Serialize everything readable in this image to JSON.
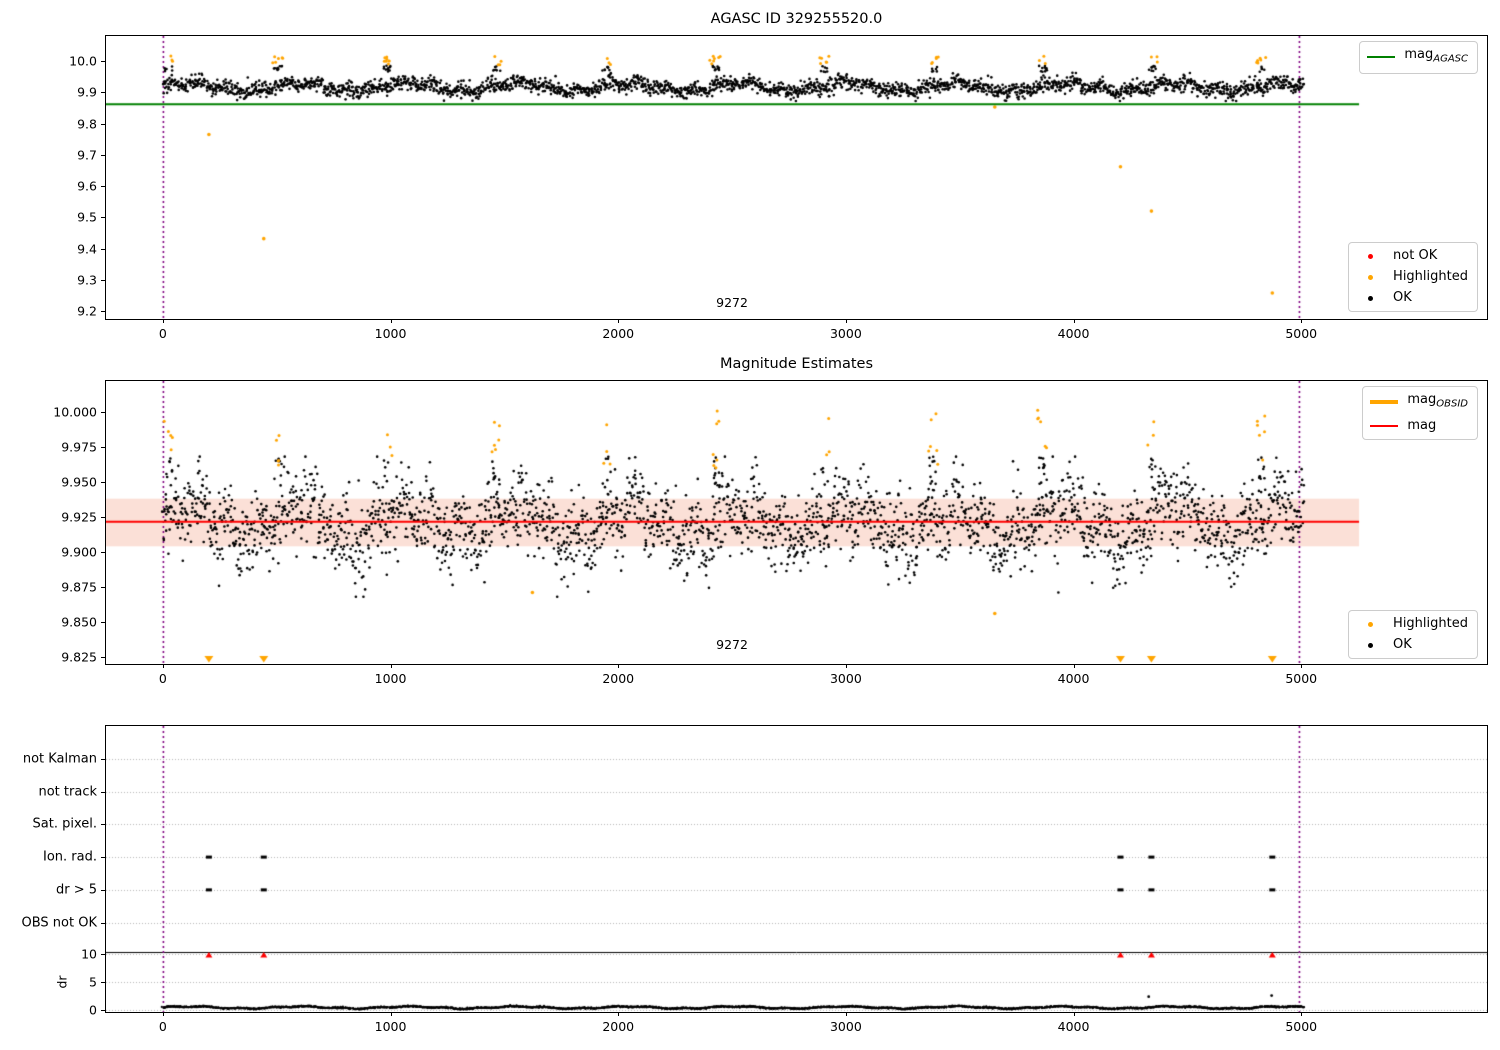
{
  "colors": {
    "ok": "#000000",
    "highlighted": "#FFA500",
    "not_ok": "#FF0000",
    "mag_agasc_line": "#008000",
    "mag_line": "#FF0000",
    "mag_band": "#fbe0d7",
    "obs_boundary": "#800080",
    "grid": "#b5b5b5",
    "separator": "#000000"
  },
  "chart_data": [
    {
      "type": "scatter",
      "title": "AGASC ID 329255520.0",
      "xlim": [
        -250,
        5816
      ],
      "ylim": [
        9.175,
        10.08
      ],
      "xticks": [
        0,
        1000,
        2000,
        3000,
        4000,
        5000
      ],
      "xtick_labels": [
        "0",
        "1000",
        "2000",
        "3000",
        "4000",
        "5000"
      ],
      "yticks": [
        10.0,
        9.9,
        9.8,
        9.7,
        9.6,
        9.5,
        9.4,
        9.3,
        9.2
      ],
      "ytick_labels": [
        "10.0",
        "9.9",
        "9.8",
        "9.7",
        "9.6",
        "9.5",
        "9.4",
        "9.3",
        "9.2"
      ],
      "grid": false,
      "hlines": [
        {
          "name": "mag_AGASC",
          "y": 9.862,
          "x0": -250,
          "x1": 5254,
          "color": "#008000",
          "width": 2
        }
      ],
      "vlines": [
        {
          "x": 0,
          "color": "#800080",
          "style": "dotted"
        },
        {
          "x": 4990,
          "color": "#800080",
          "style": "dotted"
        }
      ],
      "series_summary": {
        "name": "OK",
        "color": "#000000",
        "n": 2600,
        "x_range": [
          0,
          5010
        ],
        "center": 9.917,
        "wave_period": 480,
        "wave_amp": 0.013,
        "wave2_period": 128,
        "wave2_amp": 0.007,
        "noise": 0.012,
        "y_min": 9.872,
        "y_max": 9.985
      },
      "highlight_clusters": {
        "name": "Highlighted",
        "color": "#FFA500",
        "start": 25,
        "period": 480,
        "count": 11,
        "y_range": [
          9.988,
          10.016
        ]
      },
      "highlight_outliers": {
        "color": "#FFA500",
        "points": [
          [
            202,
            9.765
          ],
          [
            443,
            9.432
          ],
          [
            3654,
            9.853
          ],
          [
            4206,
            9.662
          ],
          [
            4342,
            9.52
          ],
          [
            4873,
            9.258
          ]
        ]
      },
      "annotations": [
        {
          "x": 2500,
          "y": 9.205,
          "text": "9272"
        }
      ],
      "legends": [
        {
          "position": "top-right",
          "entries": [
            {
              "swatch": "line",
              "color": "#008000",
              "label": "mag",
              "sub": "AGASC"
            }
          ]
        },
        {
          "position": "bottom-right",
          "entries": [
            {
              "swatch": "dot",
              "color": "#FF0000",
              "label": "not OK"
            },
            {
              "swatch": "dot",
              "color": "#FFA500",
              "label": "Highlighted"
            },
            {
              "swatch": "dot",
              "color": "#000000",
              "label": "OK"
            }
          ]
        }
      ]
    },
    {
      "type": "scatter",
      "title": "Magnitude Estimates",
      "xlim": [
        -250,
        5816
      ],
      "ylim": [
        9.82,
        10.022
      ],
      "xticks": [
        0,
        1000,
        2000,
        3000,
        4000,
        5000
      ],
      "xtick_labels": [
        "0",
        "1000",
        "2000",
        "3000",
        "4000",
        "5000"
      ],
      "yticks": [
        10.0,
        9.975,
        9.95,
        9.925,
        9.9,
        9.875,
        9.85,
        9.825
      ],
      "ytick_labels": [
        "10.000",
        "9.975",
        "9.950",
        "9.925",
        "9.900",
        "9.875",
        "9.850",
        "9.825"
      ],
      "grid": false,
      "band": {
        "y_top": 9.938,
        "y_bottom": 9.904,
        "x0": -250,
        "x1": 5254,
        "color": "#fbe0d7"
      },
      "hlines": [
        {
          "name": "mag",
          "y": 9.9215,
          "x0": -250,
          "x1": 5254,
          "color": "#FF0000",
          "width": 2
        }
      ],
      "vlines": [
        {
          "x": 0,
          "color": "#800080",
          "style": "dotted"
        },
        {
          "x": 4990,
          "color": "#800080",
          "style": "dotted"
        }
      ],
      "series_summary": {
        "name": "OK",
        "color": "#000000",
        "n": 2600,
        "x_range": [
          0,
          5010
        ],
        "center": 9.921,
        "wave_period": 480,
        "wave_amp": 0.012,
        "wave2_period": 128,
        "wave2_amp": 0.008,
        "noise": 0.014,
        "y_min": 9.868,
        "y_max": 9.968
      },
      "highlight_clusters": {
        "name": "Highlighted",
        "color": "#FFA500",
        "start": 25,
        "period": 480,
        "count": 11,
        "y_range": [
          9.956,
          10.002
        ]
      },
      "highlight_outliers": {
        "color": "#FFA500",
        "points": [
          [
            1623,
            9.871
          ],
          [
            3654,
            9.856
          ]
        ]
      },
      "below_range_triangles": {
        "x": [
          202,
          443,
          4206,
          4342,
          4873
        ],
        "y": 9.8235,
        "color": "#FFA500"
      },
      "annotations": [
        {
          "x": 2500,
          "y": 9.8285,
          "text": "9272"
        }
      ],
      "legends": [
        {
          "position": "top-right",
          "entries": [
            {
              "swatch": "thickline",
              "color": "#FFA500",
              "label": "mag",
              "sub": "OBSID"
            },
            {
              "swatch": "line",
              "color": "#FF0000",
              "label": "mag",
              "sub": ""
            }
          ]
        },
        {
          "position": "bottom-right",
          "entries": [
            {
              "swatch": "dot",
              "color": "#FFA500",
              "label": "Highlighted"
            },
            {
              "swatch": "dot",
              "color": "#000000",
              "label": "OK"
            }
          ]
        }
      ]
    },
    {
      "type": "flags-and-dr",
      "title": "",
      "xlim": [
        -250,
        5816
      ],
      "xticks": [
        0,
        1000,
        2000,
        3000,
        4000,
        5000
      ],
      "xtick_labels": [
        "0",
        "1000",
        "2000",
        "3000",
        "4000",
        "5000"
      ],
      "rows": [
        "not Kalman",
        "not track",
        "Sat. pixel.",
        "Ion. rad.",
        "dr > 5",
        "OBS not OK"
      ],
      "dr_ticks": [
        10,
        5,
        0
      ],
      "dr_tick_labels": [
        "10",
        "5",
        "0"
      ],
      "dr_axis_label": "dr",
      "grid": "dotted",
      "vlines": [
        {
          "x": 0,
          "color": "#800080",
          "style": "dotted"
        },
        {
          "x": 4990,
          "color": "#800080",
          "style": "dotted"
        }
      ],
      "flag_markers": {
        "color": "#000000",
        "rows": [
          "Ion. rad.",
          "dr > 5"
        ],
        "x": [
          202,
          443,
          4206,
          4342,
          4873
        ]
      },
      "not_ok_markers": {
        "color": "#FF0000",
        "dr_value": 10,
        "x": [
          202,
          443,
          4206,
          4342,
          4873
        ]
      },
      "dr_series_summary": {
        "name": "dr",
        "color": "#000000",
        "n": 2900,
        "x_range": [
          0,
          5010
        ],
        "center": 0.45,
        "wave_period": 480,
        "wave_amp": 0.18,
        "wave2_period": 150,
        "wave2_amp": 0.08,
        "noise": 0.06,
        "y_min": 0.05,
        "y_max": 1.15
      },
      "dr_outliers": {
        "color": "#000000",
        "points": [
          [
            4330,
            2.4
          ],
          [
            4870,
            2.6
          ]
        ]
      }
    }
  ]
}
